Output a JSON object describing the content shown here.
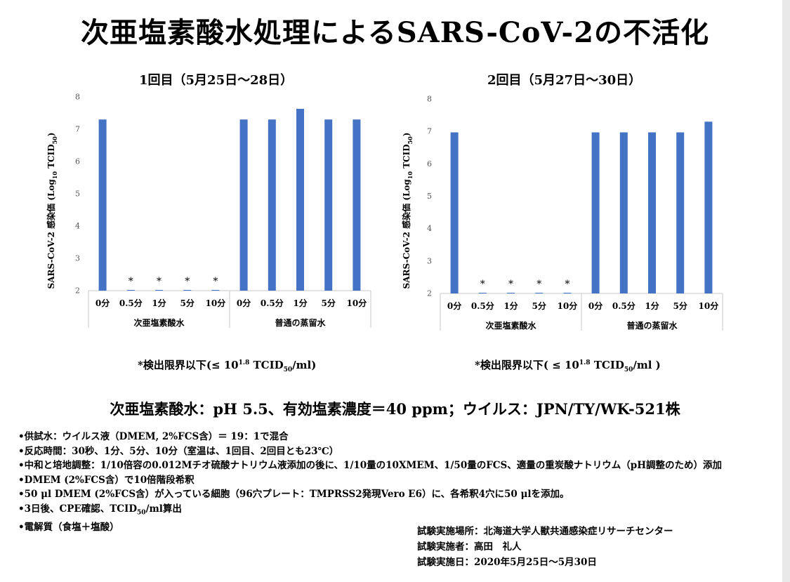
{
  "title": "次亜塩素酸水処理によるSARS-CoV-2の不活化",
  "chart_data": [
    {
      "type": "bar",
      "title": "1回目（5月25日～28日）",
      "ylabel": "SARS-CoV-2 感染価 (Log10 TCID50)",
      "ylim": [
        2,
        8
      ],
      "yticks": [
        2,
        3,
        4,
        5,
        6,
        7,
        8
      ],
      "grid": false,
      "categories": [
        "0分",
        "0.5分",
        "1分",
        "5分",
        "10分",
        "0分",
        "0.5分",
        "1分",
        "5分",
        "10分"
      ],
      "groups": [
        {
          "label": "次亜塩素酸水",
          "count": 5
        },
        {
          "label": "普通の蒸留水",
          "count": 5
        }
      ],
      "values": [
        7.3,
        2.0,
        2.0,
        2.0,
        2.0,
        7.3,
        7.3,
        7.63,
        7.3,
        7.3
      ],
      "annotations": [
        "",
        "*",
        "*",
        "*",
        "*",
        "",
        "",
        "",
        "",
        ""
      ],
      "color": "#4472c4",
      "footnote": "*検出限界以下(≤ 10^1.8 TCID50/ml)"
    },
    {
      "type": "bar",
      "title": "2回目（5月27日～30日）",
      "ylabel": "SARS-CoV-2 感染価 (Log10 TCID50)",
      "ylim": [
        2,
        8
      ],
      "yticks": [
        2,
        3,
        4,
        5,
        6,
        7,
        8
      ],
      "grid": false,
      "categories": [
        "0分",
        "0.5分",
        "1分",
        "5分",
        "10分",
        "0分",
        "0.5分",
        "1分",
        "5分",
        "10分"
      ],
      "groups": [
        {
          "label": "次亜塩素酸水",
          "count": 5
        },
        {
          "label": "普通の蒸留水",
          "count": 5
        }
      ],
      "values": [
        6.97,
        2.0,
        2.0,
        2.0,
        2.0,
        6.97,
        6.97,
        6.97,
        6.97,
        7.3
      ],
      "annotations": [
        "",
        "*",
        "*",
        "*",
        "*",
        "",
        "",
        "",
        "",
        ""
      ],
      "color": "#4472c4",
      "footnote": "*検出限界以下( ≤ 10^1.8 TCID50/ml )"
    }
  ],
  "labels": {
    "ylabel_main": "SARS-CoV-2 感染価 (Log",
    "ylabel_sub10": "10",
    "ylabel_tcid": " TCID",
    "ylabel_sub50": "50",
    "ylabel_close": ")",
    "footnote1_pre": "*検出限界以下(≤ 10",
    "footnote1_mid": " TCID",
    "footnote1_post": "/ml)",
    "footnote2_pre": "*検出限界以下( ≤ 10",
    "footnote2_mid": " TCID",
    "footnote2_post": "/ml )",
    "sup_exp": "1.8",
    "sub50": "50"
  },
  "condition": "次亜塩素酸水：pH 5.5、有効塩素濃度＝40 ppm；ウイルス：JPN/TY/WK-521株",
  "bullets": {
    "b1": "•供試水：ウイルス液（DMEM, 2%FCS含）＝ 19：1で混合",
    "b2": "•反応時間：30秒、1分、5分、10分（室温は、1回目、2回目とも23℃）",
    "b3": "•中和と培地調整：1/10倍容の0.012Mチオ硫酸ナトリウム液添加の後に、1/10量の10XMEM、1/50量のFCS、適量の重炭酸ナトリウム（pH調整のため）添加",
    "b4": "•DMEM (2%FCS含）で10倍階段希釈",
    "b5": "•50 μl DMEM (2%FCS含）が入っている細胞（96穴プレート：TMPRSS2発現Vero E6）に、各希釈4穴に50 μlを添加。",
    "b6_pre": "•3日後、CPE確認、TCID",
    "b6_sub": "50",
    "b6_post": "/ml算出",
    "b7": "•電解質（食塩＋塩酸）"
  },
  "info": {
    "place": "試験実施場所：北海道大学人獣共通感染症リサーチセンター",
    "person": "試験実施者：高田　礼人",
    "date": "試験実施日：2020年5月25日～5月30日"
  }
}
